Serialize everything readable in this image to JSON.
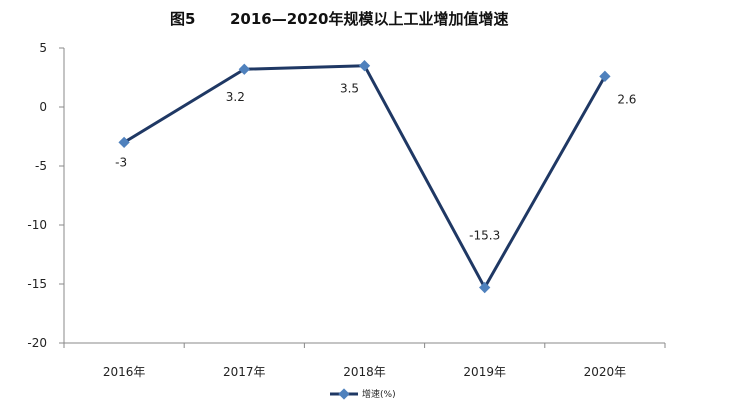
{
  "chart_data": {
    "type": "line",
    "figure_label": "图5",
    "title": "2016—2020年规模以上工业增加值增速",
    "categories": [
      "2016年",
      "2017年",
      "2018年",
      "2019年",
      "2020年"
    ],
    "series": [
      {
        "name": "增速(%)",
        "values": [
          -3,
          3.2,
          3.5,
          -15.3,
          2.6
        ],
        "color": "#1f3864",
        "marker_color": "#4f81bd"
      }
    ],
    "data_labels": [
      "-3",
      "3.2",
      "3.5",
      "-15.3",
      "2.6"
    ],
    "yticks": [
      "5",
      "0",
      "-5",
      "-10",
      "-15",
      "-20"
    ],
    "ylim": [
      -20,
      5
    ],
    "ystep": 5,
    "grid": false,
    "legend_position": "bottom",
    "axis_color": "#888888"
  }
}
